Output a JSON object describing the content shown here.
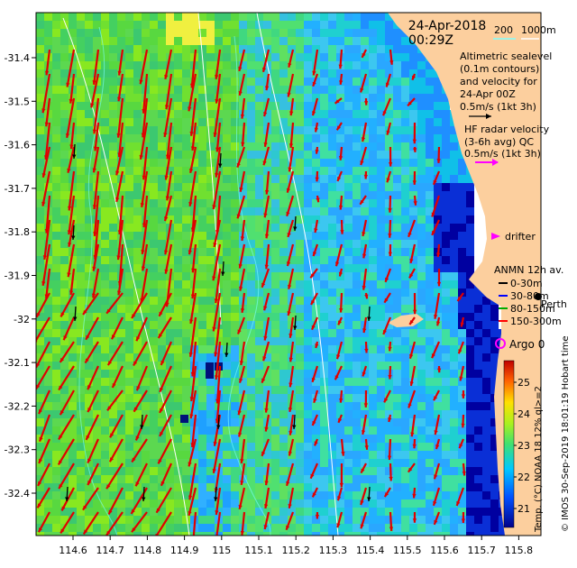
{
  "header": {
    "date": "24-Apr-2018",
    "time": "00:29Z"
  },
  "scale": {
    "depth_a": "200",
    "depth_b": "1000m"
  },
  "altimetry": {
    "lines": [
      "Altimetric sealevel",
      "(0.1m contours)",
      "and velocity for",
      "24-Apr 00Z",
      "0.5m/s (1kt 3h)"
    ]
  },
  "hf_radar": {
    "lines": [
      "HF radar velocity",
      "(3-6h avg) QC",
      "0.5m/s (1kt 3h)"
    ]
  },
  "drifter_label": "drifter",
  "anmn": {
    "title": "ANMN 12h av.",
    "items": [
      {
        "label": "0-30m",
        "color": "#000000"
      },
      {
        "label": "30-80m",
        "color": "#0000ff"
      },
      {
        "label": "80-150m",
        "color": "#00aa00"
      },
      {
        "label": "150-300m",
        "color": "#ff0000"
      }
    ]
  },
  "place_label": "Perth",
  "argo_label": "Argo 0",
  "credit": "© IMOS 30-Sep-2019 18:01:19 Hobart time",
  "colorbar": {
    "label": "Temp. (°C) NOAA 18 12% ql>=2",
    "ticks": [
      "25",
      "24",
      "23",
      "22",
      "21"
    ]
  },
  "axes": {
    "x_ticks": [
      "114.6",
      "114.7",
      "114.8",
      "114.9",
      "115",
      "115.1",
      "115.2",
      "115.3",
      "115.4",
      "115.5",
      "115.6",
      "115.7",
      "115.8"
    ],
    "y_ticks": [
      "-31.4",
      "-31.5",
      "-31.6",
      "-31.7",
      "-31.8",
      "-31.9",
      "-32",
      "-32.1",
      "-32.2",
      "-32.3",
      "-32.4"
    ]
  },
  "colors": {
    "land": "#fccf9e",
    "arrow": "#e00000",
    "accent": "#ff00ff",
    "contour": "#7fffff"
  }
}
